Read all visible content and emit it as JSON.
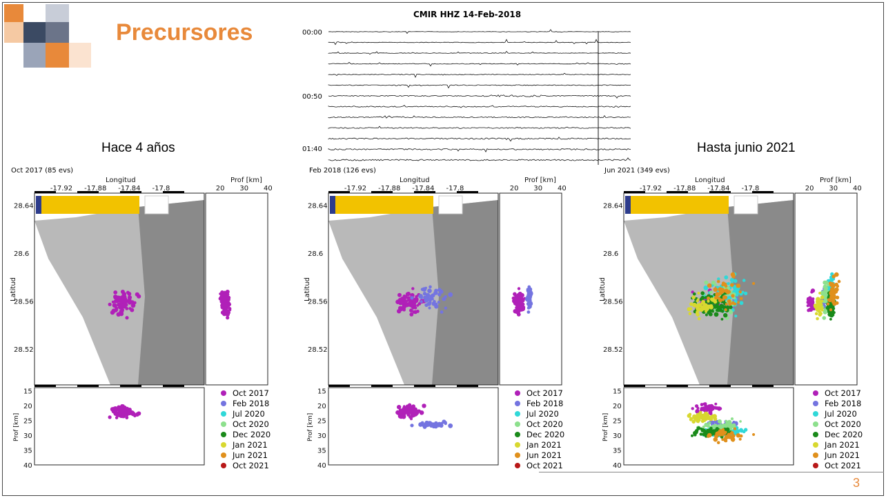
{
  "slide": {
    "title": "Precursores",
    "page_number": "3",
    "captions": {
      "left": "Hace 4 años",
      "right": "Hasta junio 2021"
    },
    "colors": {
      "title": "#e8893a",
      "logo": [
        "#e8893a",
        "#3b4a63",
        "#9aa4b8",
        "#f5c9a3"
      ]
    }
  },
  "seismogram": {
    "title": "CMIR  HHZ  14-Feb-2018",
    "time_labels": [
      "00:00",
      "00:50",
      "01:40"
    ]
  },
  "legend_entries": [
    {
      "label": "Oct 2017",
      "color": "#b020b8"
    },
    {
      "label": "Feb 2018",
      "color": "#7474e0"
    },
    {
      "label": "Jul 2020",
      "color": "#30d8d8"
    },
    {
      "label": "Oct 2020",
      "color": "#8de08d"
    },
    {
      "label": "Dec 2020",
      "color": "#1a8a1a"
    },
    {
      "label": "Jan 2021",
      "color": "#d8d830"
    },
    {
      "label": "Jun 2021",
      "color": "#e0901c"
    },
    {
      "label": "Oct 2021",
      "color": "#b81818"
    }
  ],
  "chart_data": [
    {
      "type": "scatter",
      "header": "Oct 2017 (85 evs)",
      "xlabel": "Longitud",
      "ylabel": "Latitud",
      "depth_label_top": "Prof [km]",
      "depth_label_bottom": "Prof [km]",
      "xlim": [
        -17.95,
        -17.75
      ],
      "ylim": [
        28.49,
        28.65
      ],
      "x_ticks": [
        "-17.92",
        "-17.88",
        "-17.84",
        "-17.8"
      ],
      "y_ticks": [
        "28.64",
        "28.6",
        "28.56",
        "28.52"
      ],
      "depth_ticks_top": [
        "20",
        "30",
        "40"
      ],
      "depth_ticks_bottom": [
        "15",
        "20",
        "25",
        "30",
        "35",
        "40"
      ],
      "depth_lim": [
        14,
        40
      ],
      "series": [
        {
          "name": "Oct 2017",
          "lon_center": -17.845,
          "lat_center": 28.559,
          "depth_center": 22,
          "lon_spread": 0.02,
          "lat_spread": 0.014,
          "depth_spread": 3,
          "count": 85
        }
      ]
    },
    {
      "type": "scatter",
      "header": "Feb 2018 (126 evs)",
      "xlabel": "Longitud",
      "ylabel": "Latitud",
      "depth_label_top": "Prof [km]",
      "depth_label_bottom": "Prof [km]",
      "xlim": [
        -17.95,
        -17.75
      ],
      "ylim": [
        28.49,
        28.65
      ],
      "x_ticks": [
        "-17.92",
        "-17.88",
        "-17.84",
        "-17.8"
      ],
      "y_ticks": [
        "28.64",
        "28.6",
        "28.56",
        "28.52"
      ],
      "depth_ticks_top": [
        "20",
        "30",
        "40"
      ],
      "depth_ticks_bottom": [
        "15",
        "20",
        "25",
        "30",
        "35",
        "40"
      ],
      "depth_lim": [
        14,
        40
      ],
      "series": [
        {
          "name": "Oct 2017",
          "lon_center": -17.855,
          "lat_center": 28.559,
          "depth_center": 22,
          "lon_spread": 0.022,
          "lat_spread": 0.014,
          "depth_spread": 3,
          "count": 80
        },
        {
          "name": "Feb 2018",
          "lon_center": -17.83,
          "lat_center": 28.562,
          "depth_center": 26.5,
          "lon_spread": 0.03,
          "lat_spread": 0.014,
          "depth_spread": 1.2,
          "count": 46
        }
      ]
    },
    {
      "type": "scatter",
      "header": "Jun 2021 (349 evs)",
      "xlabel": "Longitud",
      "ylabel": "Latitud",
      "depth_label_top": "Prof [km]",
      "depth_label_bottom": "Prof [km]",
      "xlim": [
        -17.95,
        -17.75
      ],
      "ylim": [
        28.49,
        28.65
      ],
      "x_ticks": [
        "-17.92",
        "-17.88",
        "-17.84",
        "-17.8"
      ],
      "y_ticks": [
        "28.64",
        "28.6",
        "28.56",
        "28.52"
      ],
      "depth_ticks_top": [
        "20",
        "30",
        "40"
      ],
      "depth_ticks_bottom": [
        "15",
        "20",
        "25",
        "30",
        "35",
        "40"
      ],
      "depth_lim": [
        14,
        40
      ],
      "series": [
        {
          "name": "Oct 2017",
          "lon_center": -17.85,
          "lat_center": 28.559,
          "depth_center": 21,
          "lon_spread": 0.02,
          "lat_spread": 0.012,
          "depth_spread": 2.5,
          "count": 40
        },
        {
          "name": "Feb 2018",
          "lon_center": -17.835,
          "lat_center": 28.562,
          "depth_center": 26,
          "lon_spread": 0.025,
          "lat_spread": 0.012,
          "depth_spread": 1.2,
          "count": 30
        },
        {
          "name": "Jul 2020",
          "lon_center": -17.83,
          "lat_center": 28.565,
          "depth_center": 29,
          "lon_spread": 0.035,
          "lat_spread": 0.02,
          "depth_spread": 2.5,
          "count": 70
        },
        {
          "name": "Oct 2020",
          "lon_center": -17.835,
          "lat_center": 28.562,
          "depth_center": 27,
          "lon_spread": 0.035,
          "lat_spread": 0.02,
          "depth_spread": 3,
          "count": 40
        },
        {
          "name": "Dec 2020",
          "lon_center": -17.845,
          "lat_center": 28.557,
          "depth_center": 29,
          "lon_spread": 0.03,
          "lat_spread": 0.016,
          "depth_spread": 2,
          "count": 80
        },
        {
          "name": "Jan 2021",
          "lon_center": -17.86,
          "lat_center": 28.557,
          "depth_center": 24,
          "lon_spread": 0.025,
          "lat_spread": 0.014,
          "depth_spread": 2,
          "count": 50
        },
        {
          "name": "Jun 2021",
          "lon_center": -17.83,
          "lat_center": 28.567,
          "depth_center": 30,
          "lon_spread": 0.035,
          "lat_spread": 0.02,
          "depth_spread": 3,
          "count": 39
        }
      ]
    }
  ]
}
